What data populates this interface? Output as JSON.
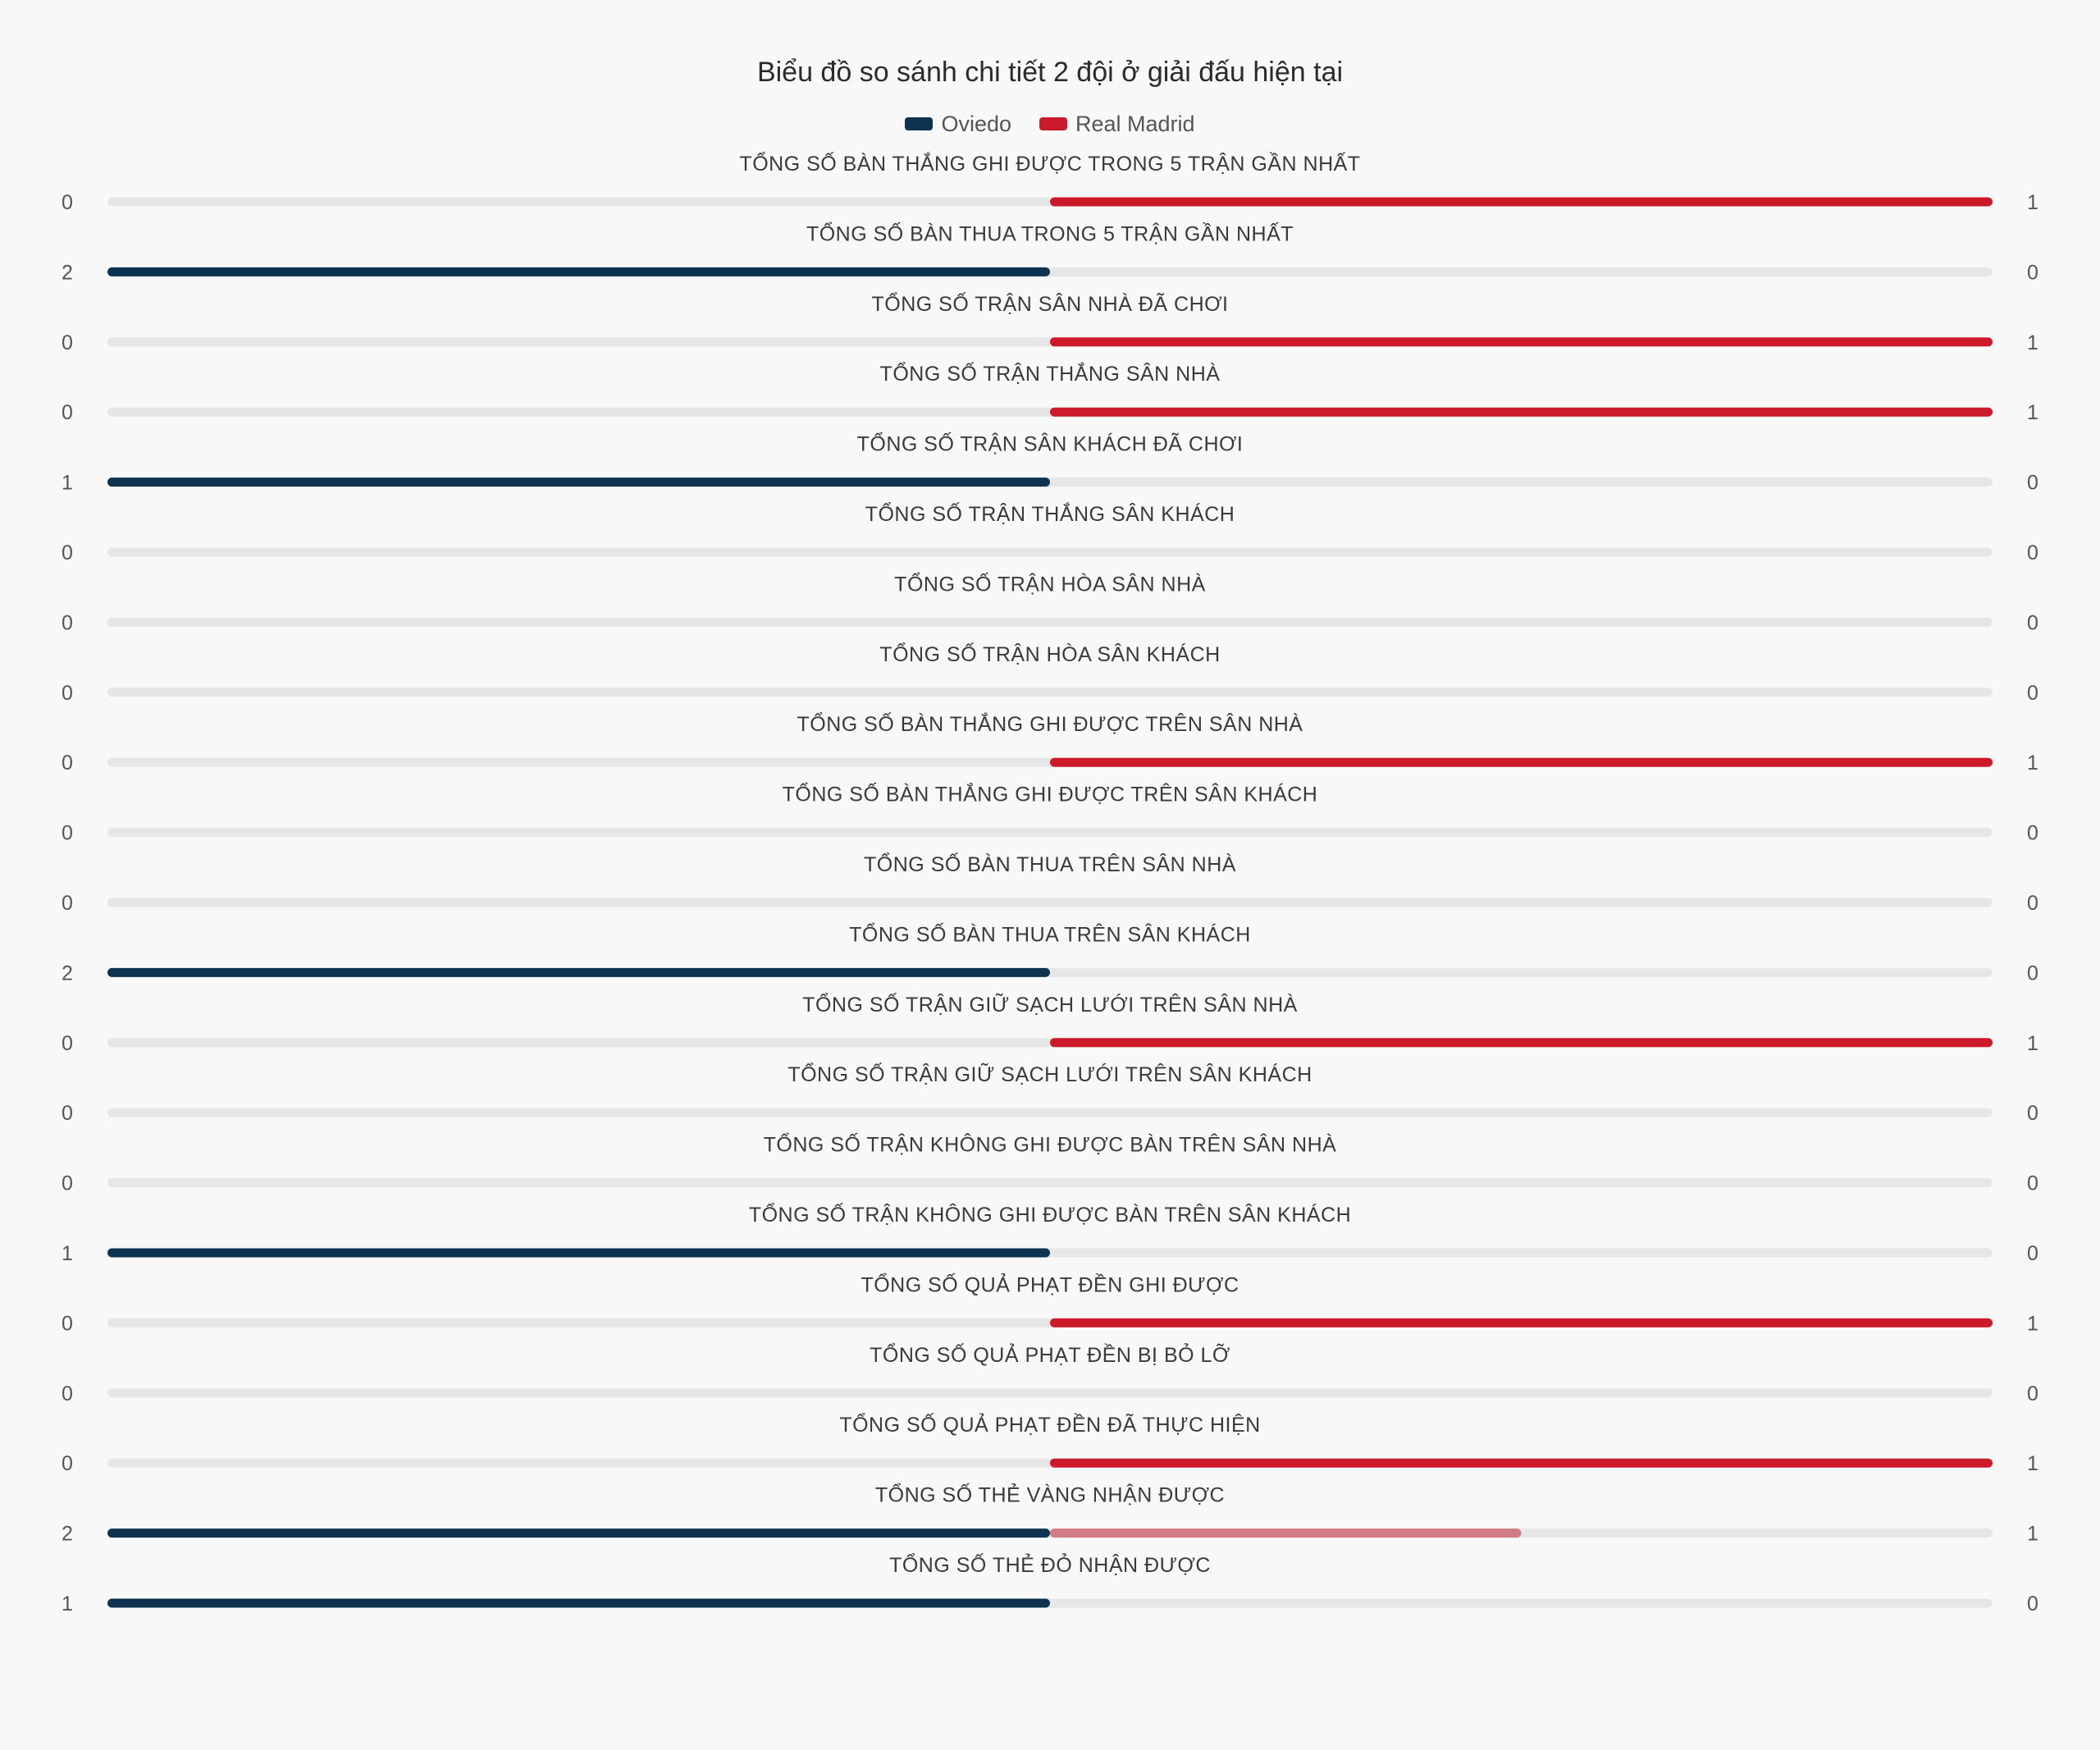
{
  "chart_data": {
    "type": "bar",
    "orientation": "horizontal-diverging",
    "title": "Biểu đồ so sánh chi tiết 2 đội ở giải đấu hiện tại",
    "legend_position": "top-center",
    "series": [
      {
        "name": "Oviedo",
        "color": "#0d3350"
      },
      {
        "name": "Real Madrid",
        "color": "#cc1a2b"
      }
    ],
    "highlight_partial_color": "#d17b84",
    "track_color": "#e6e6e6",
    "categories": [
      {
        "label": "TỔNG SỐ BÀN THẮNG GHI ĐƯỢC TRONG 5 TRẬN GẦN NHẤT",
        "left": 0,
        "right": 1
      },
      {
        "label": "TỔNG SỐ BÀN THUA TRONG 5 TRẬN GẦN NHẤT",
        "left": 2,
        "right": 0
      },
      {
        "label": "TỔNG SỐ TRẬN SÂN NHÀ ĐÃ CHƠI",
        "left": 0,
        "right": 1
      },
      {
        "label": "TỔNG SỐ TRẬN THẮNG SÂN NHÀ",
        "left": 0,
        "right": 1
      },
      {
        "label": "TỔNG SỐ TRẬN SÂN KHÁCH ĐÃ CHƠI",
        "left": 1,
        "right": 0
      },
      {
        "label": "TỔNG SỐ TRẬN THẮNG SÂN KHÁCH",
        "left": 0,
        "right": 0
      },
      {
        "label": "TỔNG SỐ TRẬN HÒA SÂN NHÀ",
        "left": 0,
        "right": 0
      },
      {
        "label": "TỔNG SỐ TRẬN HÒA SÂN KHÁCH",
        "left": 0,
        "right": 0
      },
      {
        "label": "TỔNG SỐ BÀN THẮNG GHI ĐƯỢC TRÊN SÂN NHÀ",
        "left": 0,
        "right": 1
      },
      {
        "label": "TỔNG SỐ BÀN THẮNG GHI ĐƯỢC TRÊN SÂN KHÁCH",
        "left": 0,
        "right": 0
      },
      {
        "label": "TỔNG SỐ BÀN THUA TRÊN SÂN NHÀ",
        "left": 0,
        "right": 0
      },
      {
        "label": "TỔNG SỐ BÀN THUA TRÊN SÂN KHÁCH",
        "left": 2,
        "right": 0
      },
      {
        "label": "TỔNG SỐ TRẬN GIỮ SẠCH LƯỚI TRÊN SÂN NHÀ",
        "left": 0,
        "right": 1
      },
      {
        "label": "TỔNG SỐ TRẬN GIỮ SẠCH LƯỚI TRÊN SÂN KHÁCH",
        "left": 0,
        "right": 0
      },
      {
        "label": "TỔNG SỐ TRẬN KHÔNG GHI ĐƯỢC BÀN TRÊN SÂN NHÀ",
        "left": 0,
        "right": 0
      },
      {
        "label": "TỔNG SỐ TRẬN KHÔNG GHI ĐƯỢC BÀN TRÊN SÂN KHÁCH",
        "left": 1,
        "right": 0
      },
      {
        "label": "TỔNG SỐ QUẢ PHẠT ĐỀN GHI ĐƯỢC",
        "left": 0,
        "right": 1
      },
      {
        "label": "TỔNG SỐ QUẢ PHẠT ĐỀN BỊ BỎ LỠ",
        "left": 0,
        "right": 0
      },
      {
        "label": "TỔNG SỐ QUẢ PHẠT ĐỀN ĐÃ THỰC HIỆN",
        "left": 0,
        "right": 1
      },
      {
        "label": "TỔNG SỐ THẺ VÀNG NHẬN ĐƯỢC",
        "left": 2,
        "right": 1
      },
      {
        "label": "TỔNG SỐ THẺ ĐỎ NHẬN ĐƯỢC",
        "left": 1,
        "right": 0
      }
    ]
  }
}
